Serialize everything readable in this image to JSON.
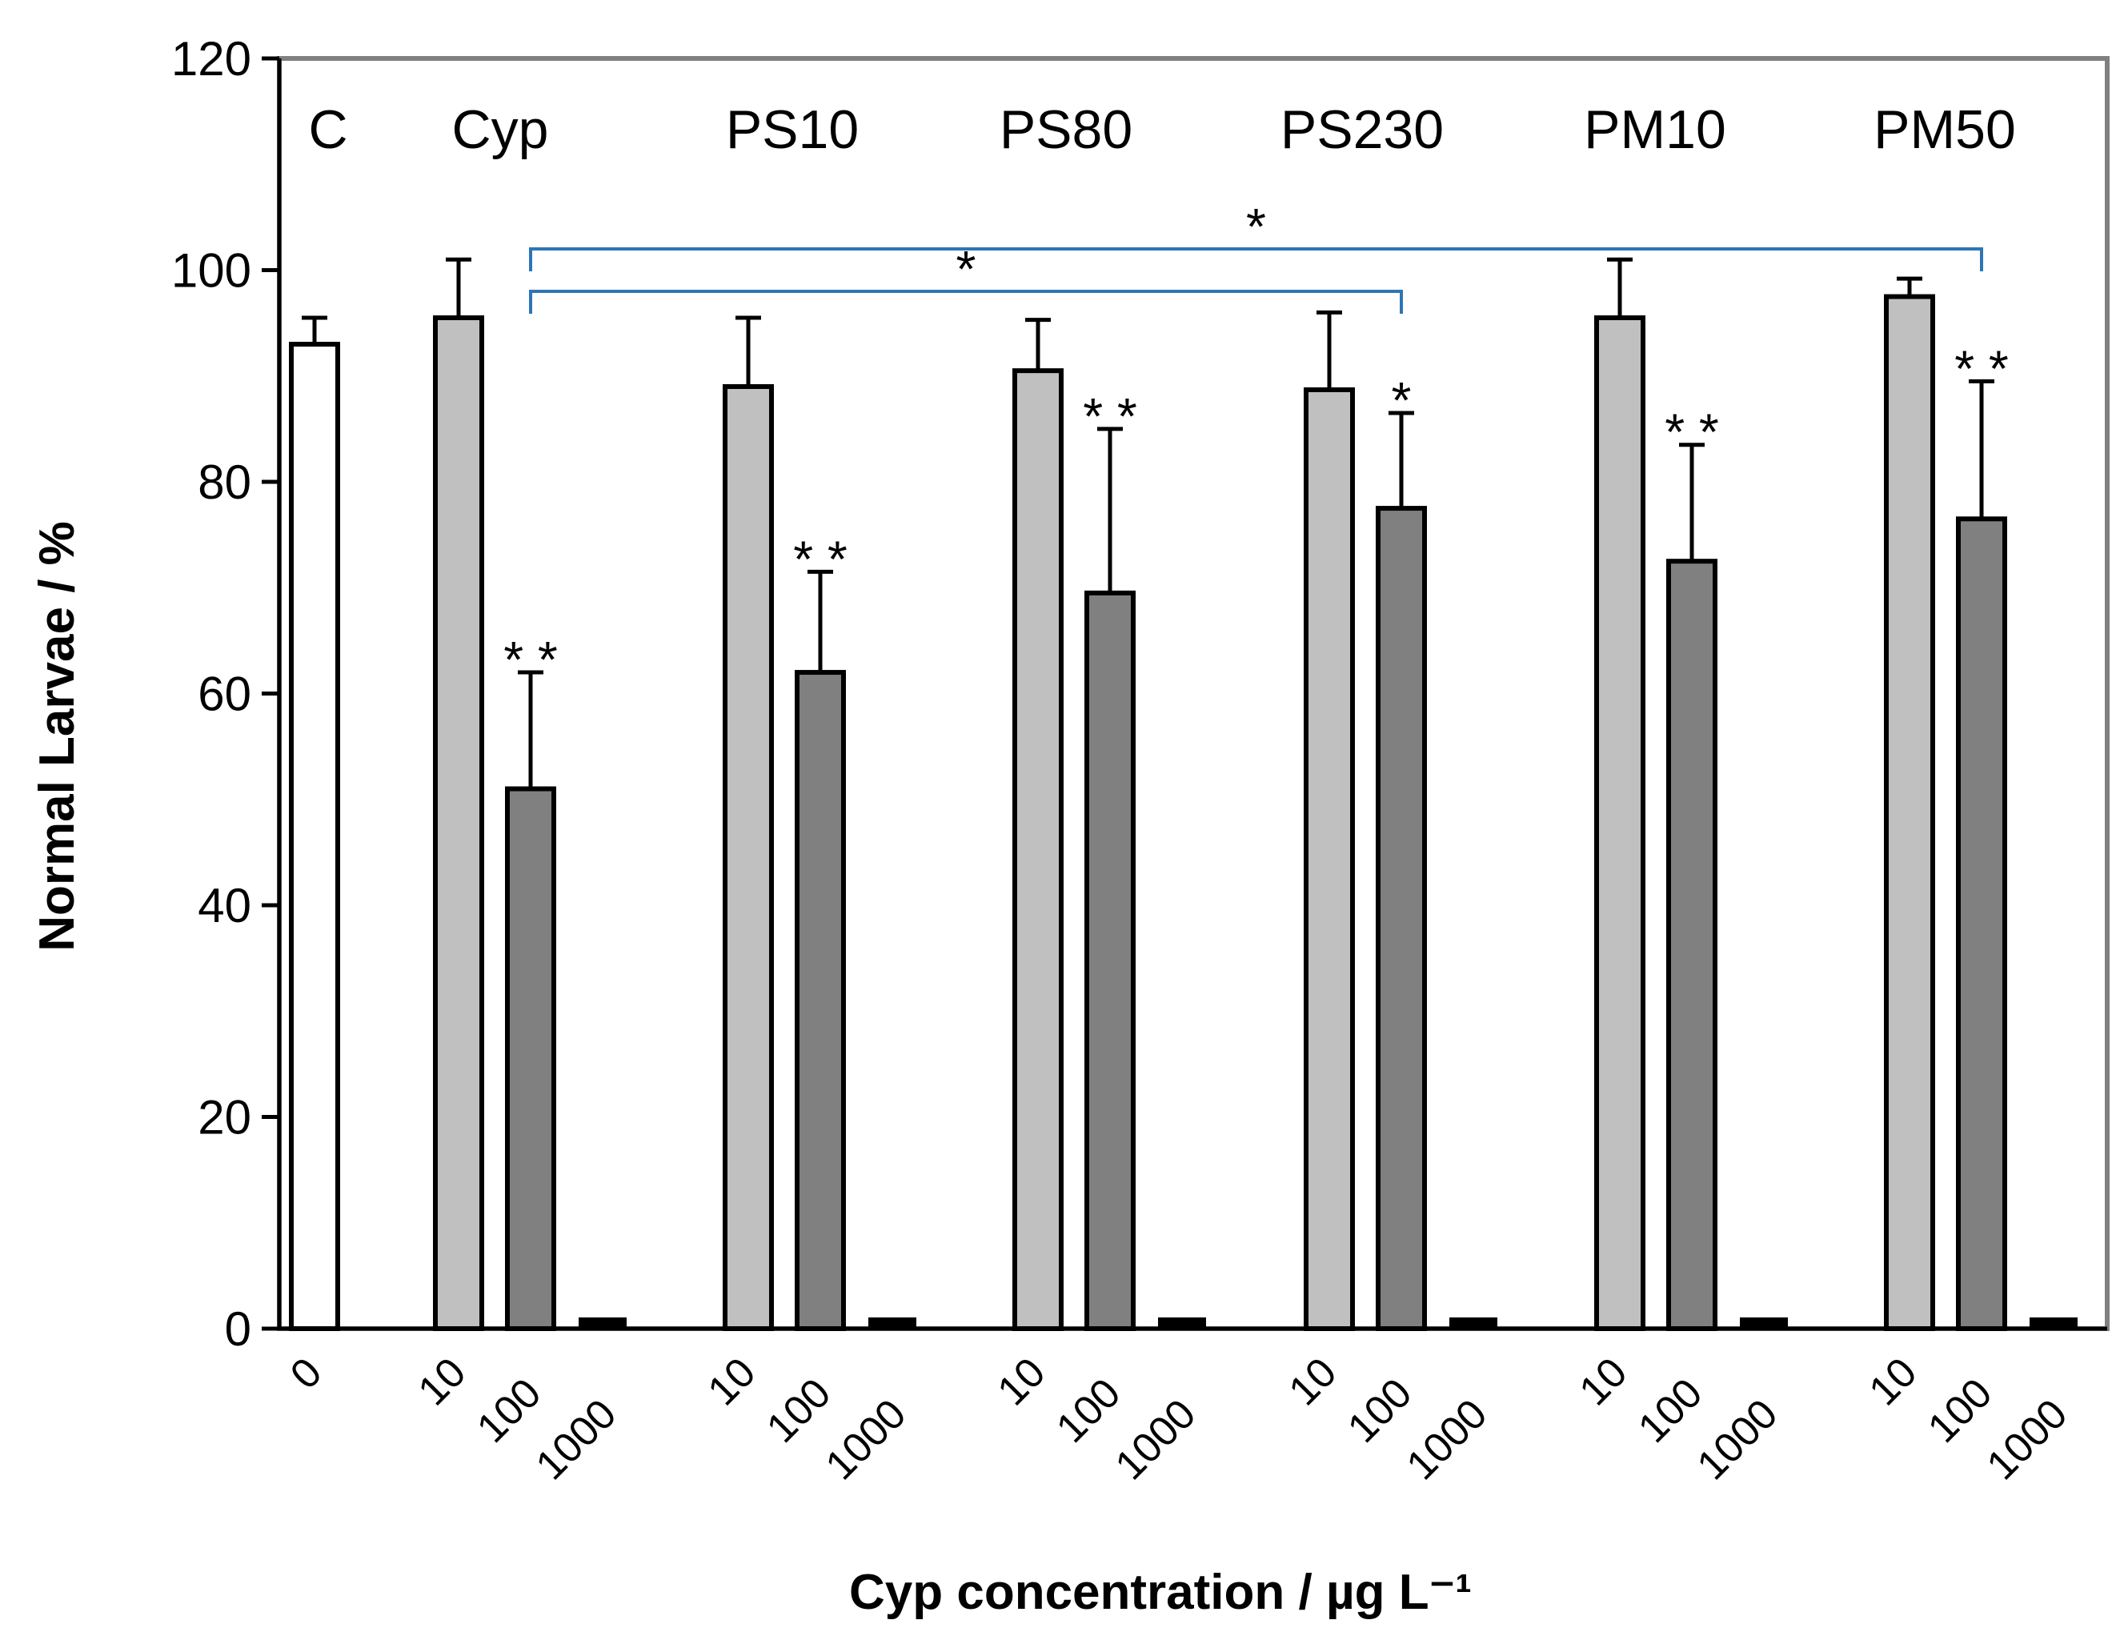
{
  "chart_data": {
    "type": "bar",
    "title": "",
    "xlabel": "Cyp concentration / µg L⁻¹",
    "ylabel": "Normal Larvae / %",
    "ylim": [
      0,
      120
    ],
    "yticks": [
      0,
      20,
      40,
      60,
      80,
      100,
      120
    ],
    "grid": false,
    "colors": {
      "0": "#ffffff",
      "10": "#c0c0c0",
      "100": "#808080",
      "1000": "#000000",
      "edge": "#000000",
      "bracket": "#2e75b6",
      "frame": "#808080"
    },
    "groups": [
      {
        "label": "C",
        "bars": [
          {
            "x_label": "0",
            "value": 93,
            "error": 2.5,
            "sig": ""
          }
        ]
      },
      {
        "label": "Cyp",
        "bars": [
          {
            "x_label": "10",
            "value": 95.5,
            "error": 5.5,
            "sig": ""
          },
          {
            "x_label": "100",
            "value": 51,
            "error": 11,
            "sig": "**"
          },
          {
            "x_label": "1000",
            "value": 0,
            "error": 0,
            "sig": ""
          }
        ]
      },
      {
        "label": "PS10",
        "bars": [
          {
            "x_label": "10",
            "value": 89,
            "error": 6.5,
            "sig": ""
          },
          {
            "x_label": "100",
            "value": 62,
            "error": 9.5,
            "sig": "**"
          },
          {
            "x_label": "1000",
            "value": 0,
            "error": 0,
            "sig": ""
          }
        ]
      },
      {
        "label": "PS80",
        "bars": [
          {
            "x_label": "10",
            "value": 90.5,
            "error": 4.8,
            "sig": ""
          },
          {
            "x_label": "100",
            "value": 69.5,
            "error": 15.5,
            "sig": "**"
          },
          {
            "x_label": "1000",
            "value": 0,
            "error": 0,
            "sig": ""
          }
        ]
      },
      {
        "label": "PS230",
        "bars": [
          {
            "x_label": "10",
            "value": 88.7,
            "error": 7.3,
            "sig": ""
          },
          {
            "x_label": "100",
            "value": 77.5,
            "error": 9,
            "sig": "*"
          },
          {
            "x_label": "1000",
            "value": 0,
            "error": 0,
            "sig": ""
          }
        ]
      },
      {
        "label": "PM10",
        "bars": [
          {
            "x_label": "10",
            "value": 95.5,
            "error": 5.5,
            "sig": ""
          },
          {
            "x_label": "100",
            "value": 72.5,
            "error": 11,
            "sig": "**"
          },
          {
            "x_label": "1000",
            "value": 0,
            "error": 0,
            "sig": ""
          }
        ]
      },
      {
        "label": "PM50",
        "bars": [
          {
            "x_label": "10",
            "value": 97.5,
            "error": 1.7,
            "sig": ""
          },
          {
            "x_label": "100",
            "value": 76.5,
            "error": 13,
            "sig": "**"
          },
          {
            "x_label": "1000",
            "value": 0,
            "error": 0,
            "sig": ""
          }
        ]
      }
    ],
    "brackets": [
      {
        "from": "Cyp 100",
        "to": "PM50 100",
        "label": "*",
        "y_value": 102
      },
      {
        "from": "Cyp 100",
        "to": "PS230 100",
        "label": "*",
        "y_value": 98
      }
    ]
  }
}
